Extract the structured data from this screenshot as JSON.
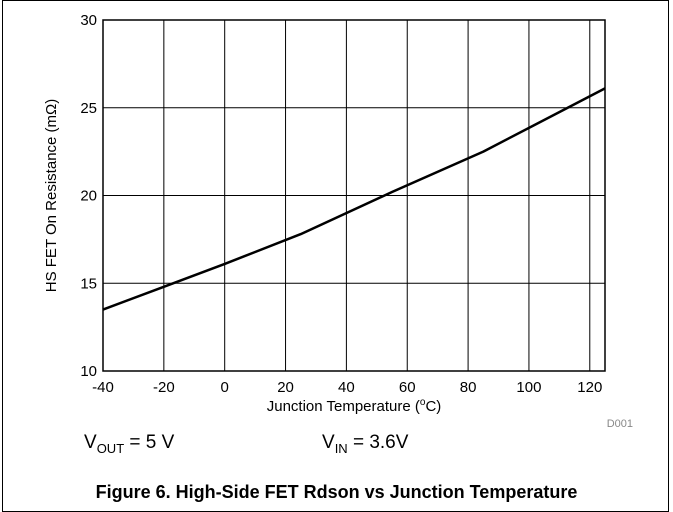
{
  "chart_data": {
    "type": "line",
    "xlabel": "Junction Temperature (°C)",
    "xlabel_main": "Junction Temperature (",
    "xlabel_sup": "o",
    "xlabel_end": "C)",
    "ylabel": "HS FET On Resistance (mΩ)",
    "xlim": [
      -40,
      125
    ],
    "ylim": [
      10,
      30
    ],
    "x_ticks": [
      -40,
      -20,
      0,
      20,
      40,
      60,
      80,
      100,
      120
    ],
    "y_ticks": [
      10,
      15,
      20,
      25,
      30
    ],
    "x_gridlines": [
      -20,
      0,
      20,
      40,
      60,
      80,
      100,
      120
    ],
    "y_gridlines": [
      15,
      20,
      25
    ],
    "grid": true,
    "series": [
      {
        "x": [
          -40,
          -20,
          0,
          25,
          55,
          85,
          125
        ],
        "y": [
          13.5,
          14.8,
          16.1,
          17.8,
          20.2,
          22.5,
          26.1
        ]
      }
    ],
    "line_color": "#000000",
    "annotation": "D001"
  },
  "conditions": {
    "vout_main": "V",
    "vout_sub": "OUT",
    "vout_value": " = 5 V",
    "vin_main": "V",
    "vin_sub": "IN",
    "vin_value": " = 3.6V"
  },
  "caption": "Figure 6. High-Side FET Rdson vs Junction Temperature"
}
